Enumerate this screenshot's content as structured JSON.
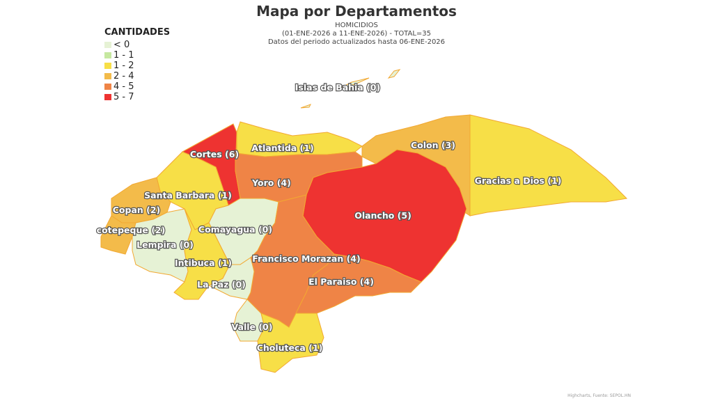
{
  "title": "Mapa por Departamentos",
  "subtitle": [
    "HOMICIDIOS",
    "(01-ENE-2026 a 11-ENE-2026) - TOTAL=35",
    "Datos del periodo actualizados hasta 06-ENE-2026"
  ],
  "legend": {
    "title": "CANTIDADES",
    "placement": "top-left",
    "items": [
      {
        "label": "< 0",
        "color": "#e6f2d5"
      },
      {
        "label": "1 - 1",
        "color": "#c6e8a0"
      },
      {
        "label": "1 - 2",
        "color": "#f7df47"
      },
      {
        "label": "2 - 4",
        "color": "#f3bb4a"
      },
      {
        "label": "4 - 5",
        "color": "#ef8446"
      },
      {
        "label": "5 - 7",
        "color": "#ee3331"
      }
    ]
  },
  "departments": [
    {
      "name": "Islas de Bahia",
      "value": 0,
      "label": "Islas de Bahia (0)"
    },
    {
      "name": "Cortes",
      "value": 6,
      "label": "Cortes (6)"
    },
    {
      "name": "Atlantida",
      "value": 1,
      "label": "Atlantida (1)"
    },
    {
      "name": "Colon",
      "value": 3,
      "label": "Colon (3)"
    },
    {
      "name": "Gracias a Dios",
      "value": 1,
      "label": "Gracias a Dios (1)"
    },
    {
      "name": "Yoro",
      "value": 4,
      "label": "Yoro (4)"
    },
    {
      "name": "Santa Barbara",
      "value": 1,
      "label": "Santa Barbara (1)"
    },
    {
      "name": "Olancho",
      "value": 5,
      "label": "Olancho (5)"
    },
    {
      "name": "Copan",
      "value": 2,
      "label": "Copan (2)"
    },
    {
      "name": "Ocotepeque",
      "value": 2,
      "label": "cotepeque (2)"
    },
    {
      "name": "Comayagua",
      "value": 0,
      "label": "Comayagua (0)"
    },
    {
      "name": "Lempira",
      "value": 0,
      "label": "Lempira (0)"
    },
    {
      "name": "Intibuca",
      "value": 1,
      "label": "Intibuca (1)"
    },
    {
      "name": "Francisco Morazan",
      "value": 4,
      "label": "Francisco Morazan (4)"
    },
    {
      "name": "La Paz",
      "value": 0,
      "label": "La Paz (0)"
    },
    {
      "name": "El Paraiso",
      "value": 4,
      "label": "El Paraiso (4)"
    },
    {
      "name": "Valle",
      "value": 0,
      "label": "Valle (0)"
    },
    {
      "name": "Choluteca",
      "value": 1,
      "label": "Choluteca (1)"
    }
  ],
  "credits": "Highcharts, Fuente: SEPOL.HN"
}
